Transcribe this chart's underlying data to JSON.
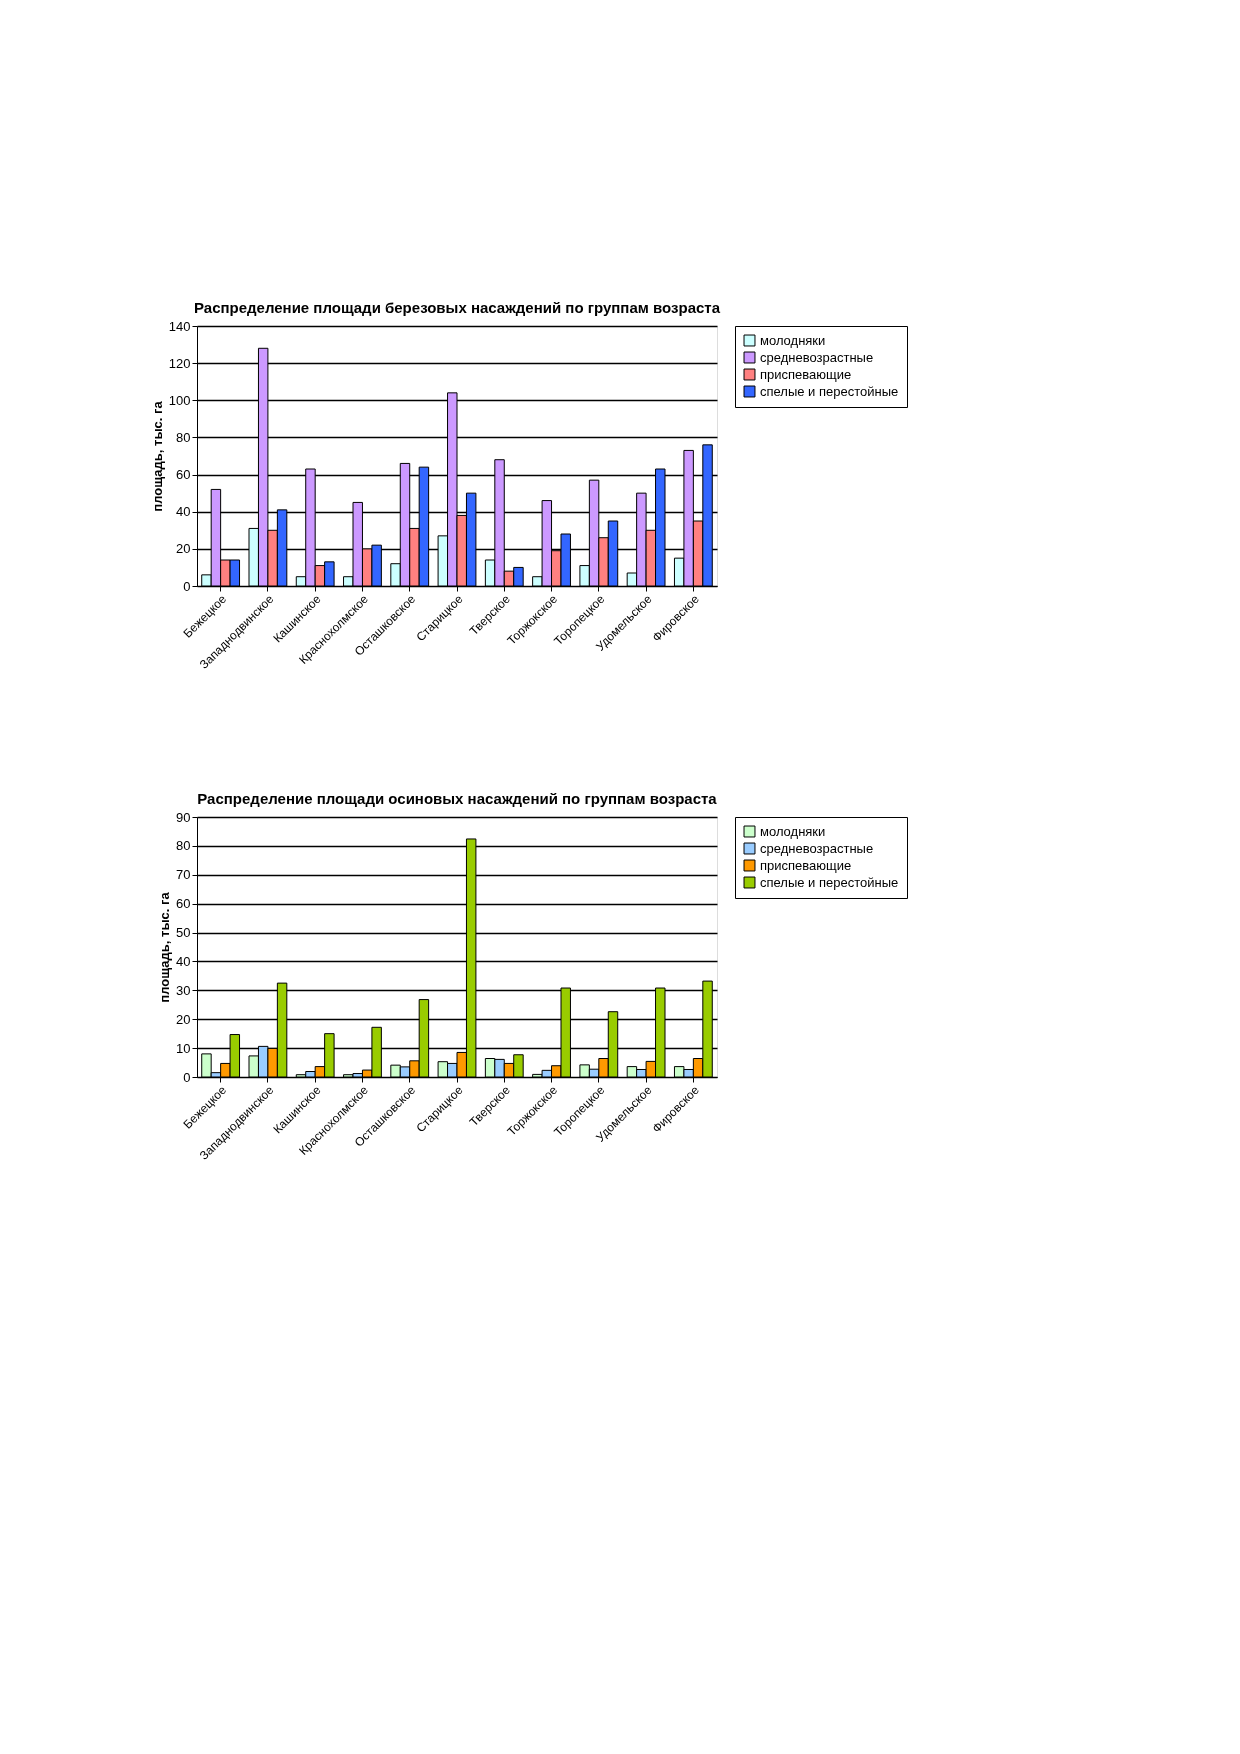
{
  "chart_data": [
    {
      "type": "bar",
      "title": "Распределение площади березовых насаждений по группам возраста",
      "ylabel": "площадь, тыс. га",
      "categories": [
        "Бежецкое",
        "Западнодвинское",
        "Кашинское",
        "Краснохолмское",
        "Осташковское",
        "Старицкое",
        "Тверское",
        "Торжокское",
        "Торопецкое",
        "Удомельское",
        "Фировское"
      ],
      "series": [
        {
          "name": "молодняки",
          "color": "#ccffff",
          "values": [
            6,
            31,
            5,
            5,
            12,
            27,
            14,
            5,
            11,
            7,
            15
          ]
        },
        {
          "name": "средневозрастные",
          "color": "#cc99ff",
          "values": [
            52,
            128,
            63,
            45,
            66,
            104,
            68,
            46,
            57,
            50,
            73
          ]
        },
        {
          "name": "приспевающие",
          "color": "#ff8080",
          "values": [
            14,
            30,
            11,
            20,
            31,
            38,
            8,
            19,
            26,
            30,
            35
          ]
        },
        {
          "name": "спелые и перестойные",
          "color": "#3366ff",
          "values": [
            14,
            41,
            13,
            22,
            64,
            50,
            10,
            28,
            35,
            63,
            76
          ]
        }
      ],
      "ylim": [
        0,
        140
      ],
      "yticks": [
        0,
        20,
        40,
        60,
        80,
        100,
        120,
        140
      ],
      "grid": "y",
      "legend": "right"
    },
    {
      "type": "bar",
      "title": "Распределение площади осиновых насаждений по группам возраста",
      "ylabel": "площадь, тыс. га",
      "categories": [
        "Бежецкое",
        "Западнодвинское",
        "Кашинское",
        "Краснохолмское",
        "Осташковское",
        "Старицкое",
        "Тверское",
        "Торжокское",
        "Торопецкое",
        "Удомельское",
        "Фировское"
      ],
      "series": [
        {
          "name": "молодняки",
          "color": "#ccffcc",
          "values": [
            8,
            7.3,
            0.8,
            0.8,
            4.1,
            5.3,
            6.4,
            0.9,
            4.2,
            3.6,
            3.6
          ]
        },
        {
          "name": "средневозрастные",
          "color": "#99ccff",
          "values": [
            1.5,
            10.6,
            1.9,
            1.2,
            3.5,
            4.7,
            6.1,
            2.3,
            2.7,
            2.6,
            2.6
          ]
        },
        {
          "name": "приспевающие",
          "color": "#ff9900",
          "values": [
            4.7,
            9.9,
            3.6,
            2.4,
            5.6,
            8.5,
            4.7,
            3.9,
            6.4,
            5.4,
            6.4
          ]
        },
        {
          "name": "спелые и перестойные",
          "color": "#99cc00",
          "values": [
            14.7,
            32.5,
            15,
            17.2,
            26.8,
            82.4,
            7.7,
            30.8,
            22.6,
            30.8,
            33.2
          ]
        }
      ],
      "ylim": [
        0,
        90
      ],
      "yticks": [
        0,
        10,
        20,
        30,
        40,
        50,
        60,
        70,
        80,
        90
      ],
      "grid": "y",
      "legend": "right"
    }
  ]
}
